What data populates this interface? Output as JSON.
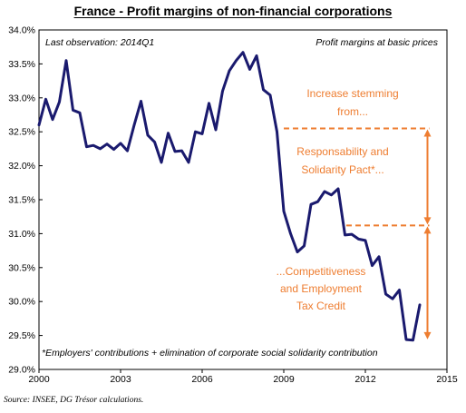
{
  "chart_data": {
    "type": "line",
    "title": "France - Profit margins of non-financial corporations",
    "subtitle": "Profit margins at basic prices",
    "note_left": "Last observation: 2014Q1",
    "footnote": "*Employers' contributions + elimination of corporate social solidarity contribution",
    "source": "Source: INSEE, DG Trésor calculations.",
    "xlim": [
      2000,
      2015
    ],
    "ylim": [
      29.0,
      34.0
    ],
    "x_ticks": [
      2000,
      2003,
      2006,
      2009,
      2012,
      2015
    ],
    "y_ticks": [
      29.0,
      29.5,
      30.0,
      30.5,
      31.0,
      31.5,
      32.0,
      32.5,
      33.0,
      33.5,
      34.0
    ],
    "y_tick_format": "percent_1dp",
    "series": [
      {
        "color": "#1a1a6e",
        "x": [
          2000.0,
          2000.25,
          2000.5,
          2000.75,
          2001.0,
          2001.25,
          2001.5,
          2001.75,
          2002.0,
          2002.25,
          2002.5,
          2002.75,
          2003.0,
          2003.25,
          2003.5,
          2003.75,
          2004.0,
          2004.25,
          2004.5,
          2004.75,
          2005.0,
          2005.25,
          2005.5,
          2005.75,
          2006.0,
          2006.25,
          2006.5,
          2006.75,
          2007.0,
          2007.25,
          2007.5,
          2007.75,
          2008.0,
          2008.25,
          2008.5,
          2008.75,
          2009.0,
          2009.25,
          2009.5,
          2009.75,
          2010.0,
          2010.25,
          2010.5,
          2010.75,
          2011.0,
          2011.25,
          2011.5,
          2011.75,
          2012.0,
          2012.25,
          2012.5,
          2012.75,
          2013.0,
          2013.25,
          2013.5,
          2013.75,
          2014.0
        ],
        "values": [
          32.6,
          32.98,
          32.68,
          32.94,
          33.55,
          32.82,
          32.78,
          32.28,
          32.3,
          32.25,
          32.32,
          32.24,
          32.33,
          32.22,
          32.6,
          32.95,
          32.45,
          32.35,
          32.05,
          32.48,
          32.21,
          32.22,
          32.05,
          32.5,
          32.47,
          32.92,
          32.53,
          33.1,
          33.4,
          33.55,
          33.67,
          33.42,
          33.62,
          33.12,
          33.04,
          32.5,
          31.33,
          31.0,
          30.73,
          30.82,
          31.43,
          31.47,
          31.62,
          31.57,
          31.66,
          30.98,
          30.99,
          30.92,
          30.9,
          30.53,
          30.66,
          30.11,
          30.04,
          30.17,
          29.44,
          29.43,
          29.95
        ]
      }
    ],
    "annotations": {
      "text_top": [
        "Increase stemming",
        "from..."
      ],
      "text_mid": [
        "Responsability and",
        "Solidarity Pact*..."
      ],
      "text_bottom": [
        "...Competitiveness",
        "and Employment",
        "Tax Credit"
      ],
      "color": "#ee7d30",
      "level_high": 32.55,
      "level_mid": 31.12,
      "level_low": 29.43,
      "x_high_start": 2009.0,
      "x_mid_start": 2011.3,
      "x_end": 2014.35
    }
  }
}
